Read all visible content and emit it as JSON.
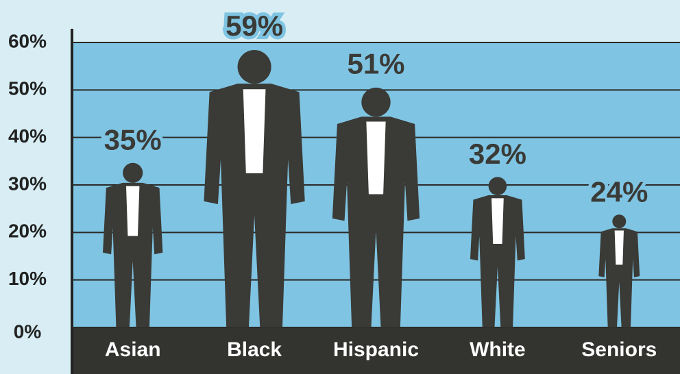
{
  "chart_data": {
    "type": "figure-bar",
    "categories": [
      "Asian",
      "Black",
      "Hispanic",
      "White",
      "Seniors"
    ],
    "values": [
      35,
      59,
      51,
      32,
      24
    ],
    "value_labels": [
      "35%",
      "59%",
      "51%",
      "32%",
      "24%"
    ],
    "color": "#3a3a36",
    "ylim": [
      0,
      60
    ],
    "yticks": [
      {
        "value": 0,
        "label": "0%"
      },
      {
        "value": 10,
        "label": "10%"
      },
      {
        "value": 20,
        "label": "20%"
      },
      {
        "value": 30,
        "label": "30%"
      },
      {
        "value": 40,
        "label": "40%"
      },
      {
        "value": 50,
        "label": "50%"
      },
      {
        "value": 60,
        "label": "60%"
      }
    ],
    "grid": true
  }
}
